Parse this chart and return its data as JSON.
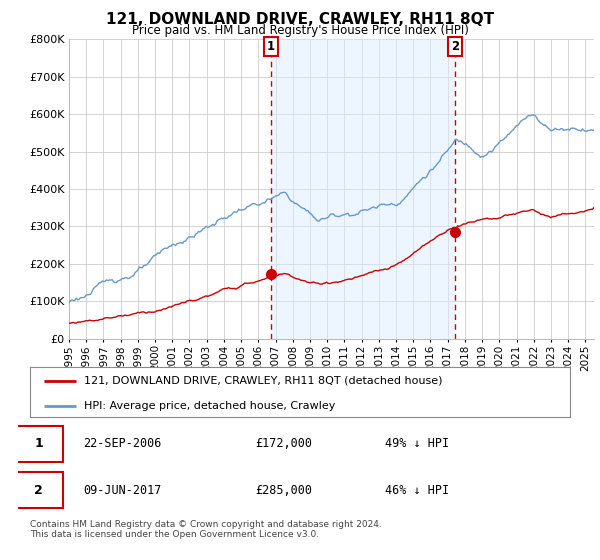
{
  "title": "121, DOWNLAND DRIVE, CRAWLEY, RH11 8QT",
  "subtitle": "Price paid vs. HM Land Registry's House Price Index (HPI)",
  "ylim": [
    0,
    800000
  ],
  "yticks": [
    0,
    100000,
    200000,
    300000,
    400000,
    500000,
    600000,
    700000,
    800000
  ],
  "xlim_start": 1995.0,
  "xlim_end": 2025.5,
  "red_line_color": "#cc0000",
  "blue_line_color": "#6699cc",
  "blue_fill_color": "#ddeeff",
  "dashed_line_color": "#cc0000",
  "marker_color": "#cc0000",
  "transaction1_x": 2006.73,
  "transaction1_y": 172000,
  "transaction2_x": 2017.44,
  "transaction2_y": 285000,
  "legend_label1": "121, DOWNLAND DRIVE, CRAWLEY, RH11 8QT (detached house)",
  "legend_label2": "HPI: Average price, detached house, Crawley",
  "table_row1_num": "1",
  "table_row1_date": "22-SEP-2006",
  "table_row1_price": "£172,000",
  "table_row1_hpi": "49% ↓ HPI",
  "table_row2_num": "2",
  "table_row2_date": "09-JUN-2017",
  "table_row2_price": "£285,000",
  "table_row2_hpi": "46% ↓ HPI",
  "footer": "Contains HM Land Registry data © Crown copyright and database right 2024.\nThis data is licensed under the Open Government Licence v3.0.",
  "background_color": "#ffffff",
  "grid_color": "#cccccc"
}
